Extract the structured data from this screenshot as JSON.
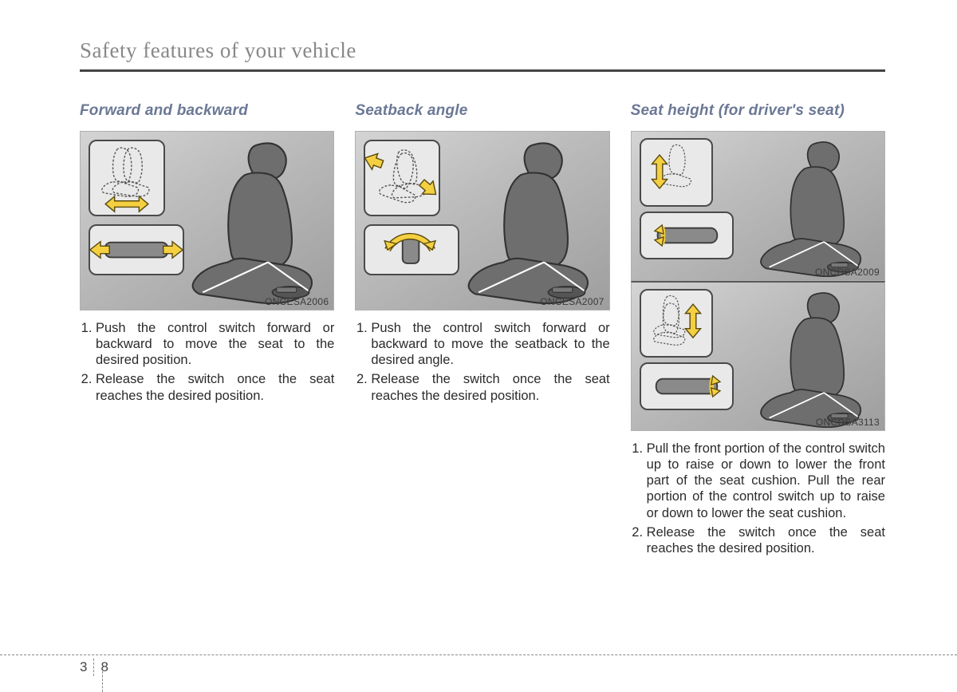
{
  "page": {
    "title": "Safety features of your vehicle",
    "section_number": "3",
    "page_number": "8"
  },
  "colors": {
    "title_text": "#888888",
    "heading_text": "#6b7895",
    "body_text": "#2b2b2b",
    "rule": "#444444",
    "arrow_fill": "#f4d041",
    "arrow_stroke": "#5a4a10",
    "figure_bg_light": "#d4d4d4",
    "figure_bg_dark": "#9e9e9e",
    "inset_bg": "#e9e9e9",
    "inset_border": "#4a4a4a",
    "seat_fill": "#6e6e6e",
    "seat_stroke": "#323232",
    "dashed_outline": "#555555"
  },
  "columns": [
    {
      "heading": "Forward and backward",
      "figures": [
        {
          "code": "ONCESA2006",
          "height": "tall",
          "motion": "horizontal"
        }
      ],
      "steps": [
        "Push the control switch forward or backward to move the seat to the desired position.",
        "Release the switch once the seat reaches the desired position."
      ]
    },
    {
      "heading": "Seatback angle",
      "figures": [
        {
          "code": "ONCESA2007",
          "height": "tall",
          "motion": "tilt"
        }
      ],
      "steps": [
        "Push the control switch forward or backward to move the seatback to the desired angle.",
        "Release the switch once the seat reaches the desired position."
      ]
    },
    {
      "heading": "Seat height (for driver's seat)",
      "figures": [
        {
          "code": "ONCDSA2009",
          "height": "short",
          "motion": "vertical-front"
        },
        {
          "code": "ONCDSA3113",
          "height": "short",
          "motion": "vertical-rear"
        }
      ],
      "steps": [
        "Pull the front portion of the control switch up to raise or down to lower the front part of the seat cushion. Pull the rear portion of the control switch up to raise or down to lower the seat cushion.",
        "Release the switch once the seat reaches the desired position."
      ]
    }
  ]
}
